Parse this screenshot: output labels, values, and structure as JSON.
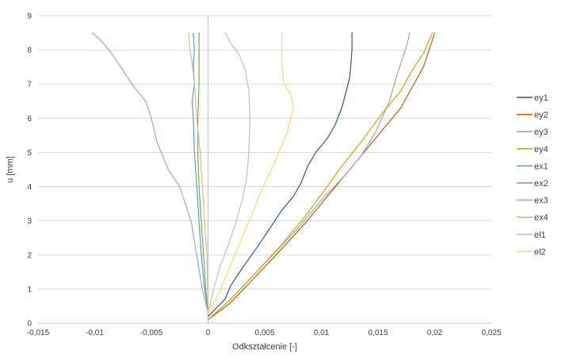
{
  "chart_data": {
    "type": "line",
    "title": "",
    "xlabel": "Odkształcenie [-]",
    "ylabel": "u [mm]",
    "xlim": [
      -0.015,
      0.025
    ],
    "ylim": [
      0,
      9
    ],
    "x_ticks": [
      -0.015,
      -0.01,
      -0.005,
      0,
      0.005,
      0.01,
      0.015,
      0.02,
      0.025
    ],
    "x_tick_labels": [
      "-0,015",
      "-0,01",
      "-0,005",
      "0",
      "0,005",
      "0,01",
      "0,015",
      "0,02",
      "0,025"
    ],
    "y_ticks": [
      0,
      1,
      2,
      3,
      4,
      5,
      6,
      7,
      8,
      9
    ],
    "y_tick_labels": [
      "0",
      "1",
      "2",
      "3",
      "4",
      "5",
      "6",
      "7",
      "8",
      "9"
    ],
    "grid": "horizontal",
    "legend_position": "right",
    "series": [
      {
        "name": "ey1",
        "color": "#2f5597",
        "points": [
          [
            0,
            0.2
          ],
          [
            0.0015,
            0.7
          ],
          [
            0.002,
            1.1
          ],
          [
            0.003,
            1.6
          ],
          [
            0.0045,
            2.3
          ],
          [
            0.0055,
            2.8
          ],
          [
            0.0065,
            3.3
          ],
          [
            0.0075,
            3.7
          ],
          [
            0.0082,
            4.1
          ],
          [
            0.0088,
            4.6
          ],
          [
            0.0095,
            5.0
          ],
          [
            0.0105,
            5.4
          ],
          [
            0.0112,
            5.8
          ],
          [
            0.0118,
            6.3
          ],
          [
            0.0122,
            6.8
          ],
          [
            0.0125,
            7.2
          ],
          [
            0.0126,
            7.6
          ],
          [
            0.0127,
            8.0
          ],
          [
            0.0127,
            8.5
          ]
        ]
      },
      {
        "name": "ey2",
        "color": "#c55a11",
        "points": [
          [
            0,
            0.1
          ],
          [
            0.002,
            0.6
          ],
          [
            0.004,
            1.3
          ],
          [
            0.006,
            2.0
          ],
          [
            0.0085,
            2.9
          ],
          [
            0.0105,
            3.7
          ],
          [
            0.0125,
            4.5
          ],
          [
            0.014,
            5.1
          ],
          [
            0.0155,
            5.7
          ],
          [
            0.017,
            6.3
          ],
          [
            0.018,
            6.9
          ],
          [
            0.019,
            7.5
          ],
          [
            0.0195,
            8.0
          ],
          [
            0.02,
            8.5
          ]
        ]
      },
      {
        "name": "ey3",
        "color": "#a5a5a5",
        "points": [
          [
            0,
            0.1
          ],
          [
            0.002,
            0.7
          ],
          [
            0.004,
            1.4
          ],
          [
            0.006,
            2.1
          ],
          [
            0.008,
            2.8
          ],
          [
            0.01,
            3.6
          ],
          [
            0.012,
            4.3
          ],
          [
            0.0135,
            4.9
          ],
          [
            0.0148,
            5.6
          ],
          [
            0.016,
            6.5
          ],
          [
            0.0168,
            7.4
          ],
          [
            0.0175,
            8.1
          ],
          [
            0.0178,
            8.5
          ]
        ]
      },
      {
        "name": "ey4",
        "color": "#d9a300",
        "points": [
          [
            0,
            0.1
          ],
          [
            0.002,
            0.7
          ],
          [
            0.004,
            1.4
          ],
          [
            0.0065,
            2.3
          ],
          [
            0.0085,
            3.1
          ],
          [
            0.0105,
            4.0
          ],
          [
            0.0118,
            4.6
          ],
          [
            0.0135,
            5.3
          ],
          [
            0.0155,
            6.2
          ],
          [
            0.017,
            6.8
          ],
          [
            0.018,
            7.4
          ],
          [
            0.019,
            7.9
          ],
          [
            0.0198,
            8.5
          ]
        ]
      },
      {
        "name": "ex1",
        "color": "#5b9bd5",
        "points": [
          [
            0,
            0.3
          ],
          [
            -0.0003,
            1.0
          ],
          [
            -0.0006,
            2.0
          ],
          [
            -0.0008,
            3.0
          ],
          [
            -0.001,
            4.0
          ],
          [
            -0.0012,
            5.0
          ],
          [
            -0.0013,
            6.0
          ],
          [
            -0.0014,
            6.5
          ],
          [
            -0.0012,
            7.0
          ],
          [
            -0.0013,
            7.6
          ],
          [
            -0.0012,
            8.0
          ],
          [
            -0.0013,
            8.5
          ]
        ]
      },
      {
        "name": "ex2",
        "color": "#70ad47",
        "points": [
          [
            0,
            0.3
          ],
          [
            -0.0002,
            1.0
          ],
          [
            -0.0004,
            2.0
          ],
          [
            -0.0006,
            3.0
          ],
          [
            -0.0008,
            4.0
          ],
          [
            -0.0009,
            5.0
          ],
          [
            -0.0009,
            6.0
          ],
          [
            -0.0008,
            7.0
          ],
          [
            -0.0008,
            8.0
          ],
          [
            -0.0008,
            8.5
          ]
        ]
      },
      {
        "name": "ex3",
        "color": "#8faadc",
        "points": [
          [
            0,
            0.3
          ],
          [
            -0.0005,
            1.0
          ],
          [
            -0.001,
            2.0
          ],
          [
            -0.0015,
            3.0
          ],
          [
            -0.0025,
            4.0
          ],
          [
            -0.0035,
            4.5
          ],
          [
            -0.0045,
            5.3
          ],
          [
            -0.005,
            6.0
          ],
          [
            -0.0055,
            6.5
          ],
          [
            -0.0065,
            6.9
          ],
          [
            -0.0075,
            7.4
          ],
          [
            -0.0085,
            7.9
          ],
          [
            -0.0095,
            8.3
          ],
          [
            -0.0102,
            8.5
          ]
        ]
      },
      {
        "name": "ex4",
        "color": "#f4b183",
        "points": [
          [
            0,
            0.3
          ],
          [
            -0.0001,
            2.0
          ],
          [
            -0.0003,
            3.0
          ],
          [
            -0.0005,
            4.0
          ],
          [
            -0.0007,
            5.0
          ],
          [
            -0.001,
            6.0
          ],
          [
            -0.0012,
            7.0
          ],
          [
            -0.0014,
            7.6
          ],
          [
            -0.0016,
            8.0
          ],
          [
            -0.0017,
            8.5
          ]
        ]
      },
      {
        "name": "el1",
        "color": "#bfbfbf",
        "points": [
          [
            0,
            0.3
          ],
          [
            0.0005,
            1.0
          ],
          [
            0.001,
            1.6
          ],
          [
            0.0018,
            2.3
          ],
          [
            0.0025,
            3.0
          ],
          [
            0.003,
            3.6
          ],
          [
            0.0034,
            4.2
          ],
          [
            0.0036,
            5.0
          ],
          [
            0.0037,
            6.0
          ],
          [
            0.0036,
            6.8
          ],
          [
            0.0033,
            7.4
          ],
          [
            0.0027,
            7.9
          ],
          [
            0.002,
            8.2
          ],
          [
            0.0015,
            8.5
          ]
        ]
      },
      {
        "name": "el2",
        "color": "#ffd966",
        "points": [
          [
            0,
            0.3
          ],
          [
            0.001,
            0.9
          ],
          [
            0.002,
            1.7
          ],
          [
            0.003,
            2.5
          ],
          [
            0.004,
            3.3
          ],
          [
            0.005,
            4.1
          ],
          [
            0.006,
            4.8
          ],
          [
            0.007,
            5.6
          ],
          [
            0.0075,
            6.3
          ],
          [
            0.0073,
            6.7
          ],
          [
            0.0067,
            7.0
          ],
          [
            0.0065,
            7.6
          ],
          [
            0.0065,
            8.0
          ],
          [
            0.0065,
            8.5
          ]
        ]
      }
    ]
  }
}
